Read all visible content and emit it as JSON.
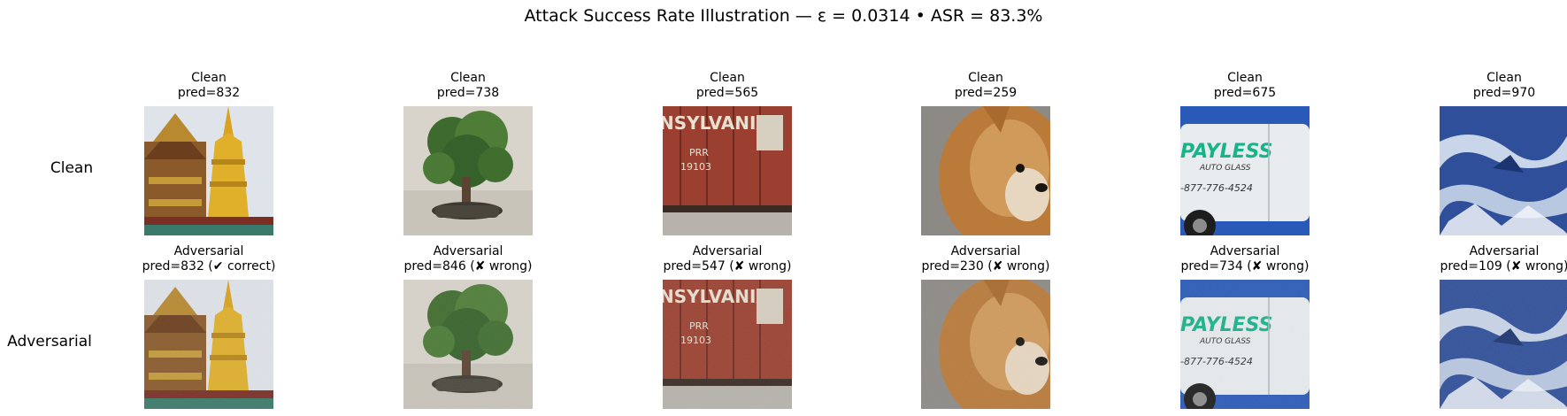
{
  "title": "Attack Success Rate Illustration — ε = 0.0314 • ASR = 83.3%",
  "row_labels": {
    "clean": "Clean",
    "adversarial": "Adversarial"
  },
  "columns": [
    {
      "subject": "golden-stupa-temple",
      "clean": {
        "label": "Clean",
        "pred": "pred=832"
      },
      "adv": {
        "label": "Adversarial",
        "pred": "pred=832 (✔ correct)"
      }
    },
    {
      "subject": "potted-bonsai-tree",
      "clean": {
        "label": "Clean",
        "pred": "pred=738"
      },
      "adv": {
        "label": "Adversarial",
        "pred": "pred=846 (✘ wrong)"
      }
    },
    {
      "subject": "pennsylvania-boxcar",
      "clean": {
        "label": "Clean",
        "pred": "pred=565"
      },
      "adv": {
        "label": "Adversarial",
        "pred": "pred=547 (✘ wrong)"
      }
    },
    {
      "subject": "pomeranian-dog",
      "clean": {
        "label": "Clean",
        "pred": "pred=259"
      },
      "adv": {
        "label": "Adversarial",
        "pred": "pred=230 (✘ wrong)"
      }
    },
    {
      "subject": "payless-van",
      "clean": {
        "label": "Clean",
        "pred": "pred=675"
      },
      "adv": {
        "label": "Adversarial",
        "pred": "pred=734 (✘ wrong)"
      }
    },
    {
      "subject": "snowy-mountains-aerial",
      "clean": {
        "label": "Clean",
        "pred": "pred=970"
      },
      "adv": {
        "label": "Adversarial",
        "pred": "pred=109 (✘ wrong)"
      }
    }
  ],
  "image_text": {
    "boxcar_top": "NSYLVANIA",
    "boxcar_mark": "PRR",
    "boxcar_number": "19103",
    "van_brand": "PAYLESS",
    "van_sub": "AUTO GLASS",
    "van_phone": "-877-776-4524"
  }
}
